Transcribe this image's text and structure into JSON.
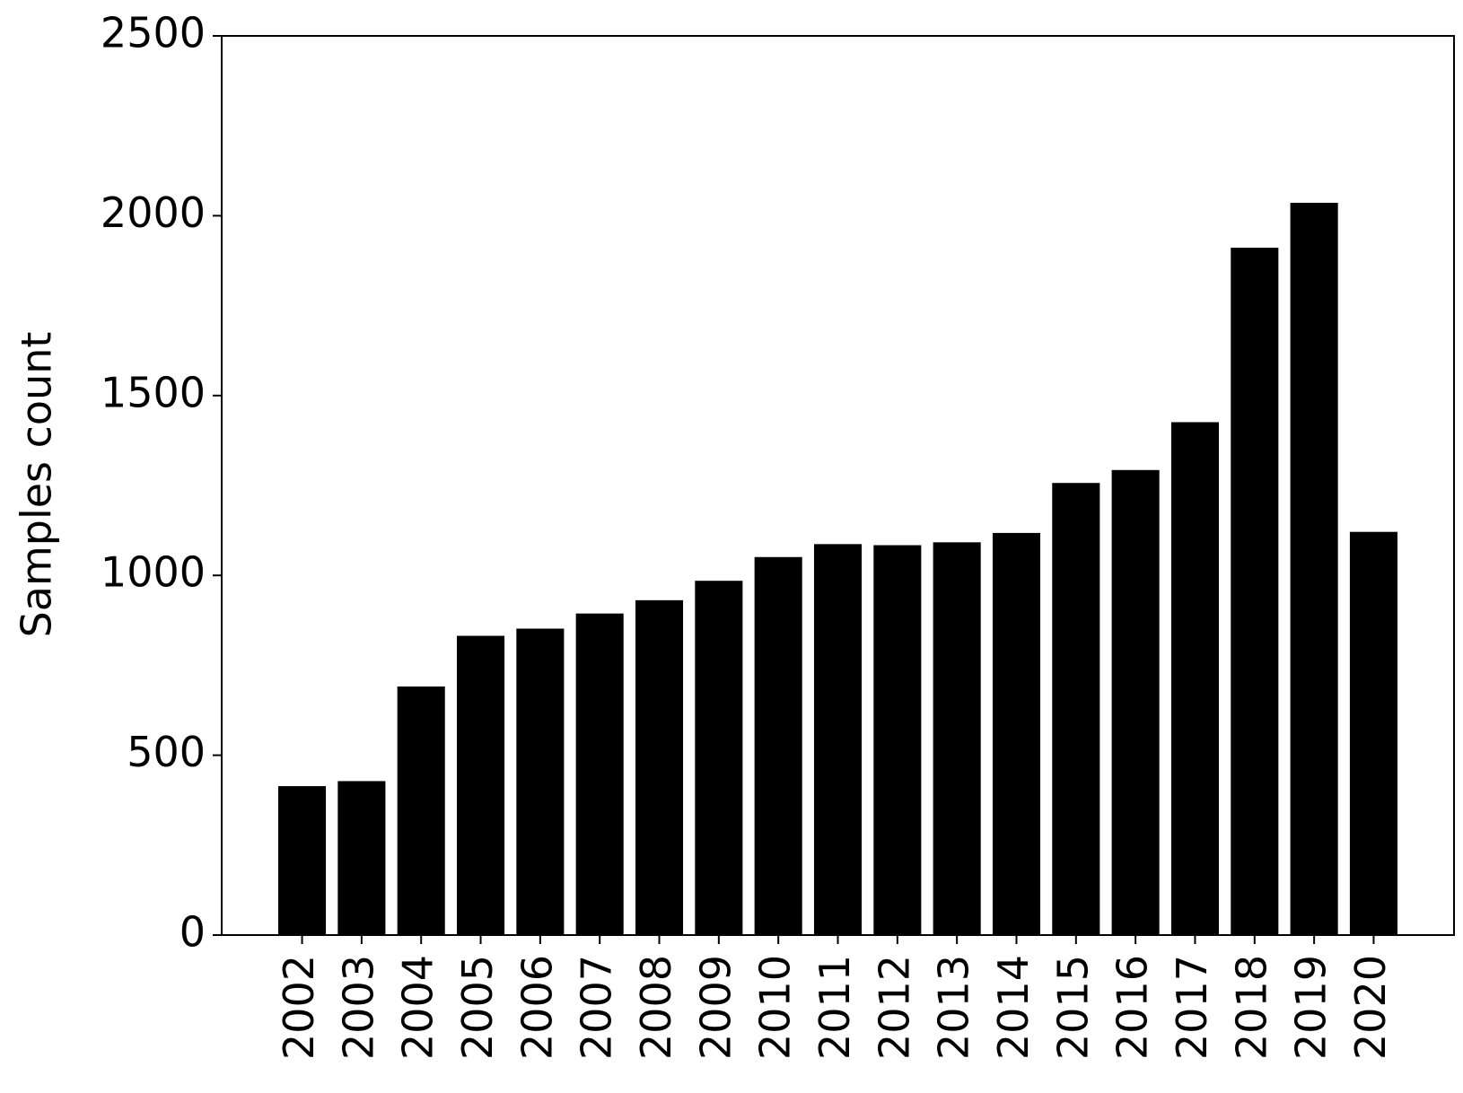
{
  "chart_data": {
    "type": "bar",
    "ylabel": "Samples count",
    "categories": [
      "2002",
      "2003",
      "2004",
      "2005",
      "2006",
      "2007",
      "2008",
      "2009",
      "2010",
      "2011",
      "2012",
      "2013",
      "2014",
      "2015",
      "2016",
      "2017",
      "2018",
      "2019",
      "2020"
    ],
    "values": [
      414,
      428,
      691,
      832,
      852,
      894,
      931,
      985,
      1051,
      1087,
      1084,
      1092,
      1118,
      1257,
      1293,
      1426,
      1911,
      2036,
      1121
    ],
    "color": "#000000",
    "ylim": [
      0,
      2500
    ],
    "yticks": [
      0,
      500,
      1000,
      1500,
      2000,
      2500
    ],
    "grid": false
  }
}
